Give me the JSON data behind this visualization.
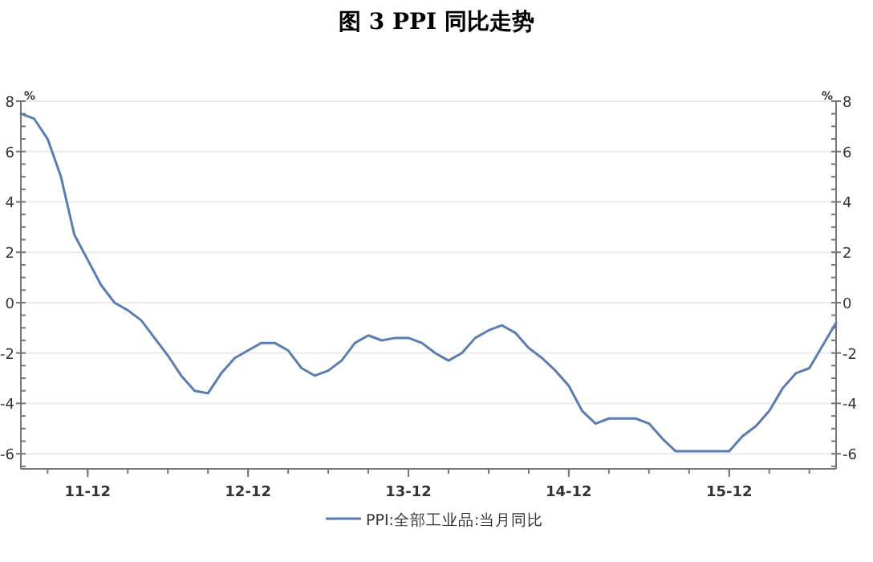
{
  "chart_data": {
    "type": "line",
    "title": "图 3 PPI 同比走势",
    "ylabel": "%",
    "y2label": "%",
    "x": [
      "2011-07",
      "2011-08",
      "2011-09",
      "2011-10",
      "2011-11",
      "2011-12",
      "2012-01",
      "2012-02",
      "2012-03",
      "2012-04",
      "2012-05",
      "2012-06",
      "2012-07",
      "2012-08",
      "2012-09",
      "2012-10",
      "2012-11",
      "2012-12",
      "2013-01",
      "2013-02",
      "2013-03",
      "2013-04",
      "2013-05",
      "2013-06",
      "2013-07",
      "2013-08",
      "2013-09",
      "2013-10",
      "2013-11",
      "2013-12",
      "2014-01",
      "2014-02",
      "2014-03",
      "2014-04",
      "2014-05",
      "2014-06",
      "2014-07",
      "2014-08",
      "2014-09",
      "2014-10",
      "2014-11",
      "2014-12",
      "2015-01",
      "2015-02",
      "2015-03",
      "2015-04",
      "2015-05",
      "2015-06",
      "2015-07",
      "2015-08",
      "2015-09",
      "2015-10",
      "2015-11",
      "2015-12",
      "2016-01",
      "2016-02",
      "2016-03",
      "2016-04",
      "2016-05",
      "2016-06",
      "2016-07",
      "2016-08"
    ],
    "series": [
      {
        "name": "PPI:全部工业品:当月同比",
        "color": "#5b7db1",
        "values": [
          7.5,
          7.3,
          6.5,
          5.0,
          2.7,
          1.7,
          0.7,
          0.0,
          -0.3,
          -0.7,
          -1.4,
          -2.1,
          -2.9,
          -3.5,
          -3.6,
          -2.8,
          -2.2,
          -1.9,
          -1.6,
          -1.6,
          -1.9,
          -2.6,
          -2.9,
          -2.7,
          -2.3,
          -1.6,
          -1.3,
          -1.5,
          -1.4,
          -1.4,
          -1.6,
          -2.0,
          -2.3,
          -2.0,
          -1.4,
          -1.1,
          -0.9,
          -1.2,
          -1.8,
          -2.2,
          -2.7,
          -3.3,
          -4.3,
          -4.8,
          -4.6,
          -4.6,
          -4.6,
          -4.8,
          -5.4,
          -5.9,
          -5.9,
          -5.9,
          -5.9,
          -5.9,
          -5.3,
          -4.9,
          -4.3,
          -3.4,
          -2.8,
          -2.6,
          -1.7,
          -0.8
        ]
      }
    ],
    "xlim": [
      "2011-07",
      "2016-08"
    ],
    "xticks": [
      {
        "value": "2011-12",
        "label": "11-12"
      },
      {
        "value": "2012-12",
        "label": "12-12"
      },
      {
        "value": "2013-12",
        "label": "13-12"
      },
      {
        "value": "2014-12",
        "label": "14-12"
      },
      {
        "value": "2015-12",
        "label": "15-12"
      }
    ],
    "ylim": [
      -6.6,
      8
    ],
    "yticks": [
      -6,
      -4,
      -2,
      0,
      2,
      4,
      6,
      8
    ],
    "y2lim": [
      -6.6,
      8
    ],
    "y2ticks": [
      -6,
      -4,
      -2,
      0,
      2,
      4,
      6,
      8
    ],
    "grid": "y",
    "legend": "bottom",
    "marker": "none",
    "line_style": "solid"
  }
}
